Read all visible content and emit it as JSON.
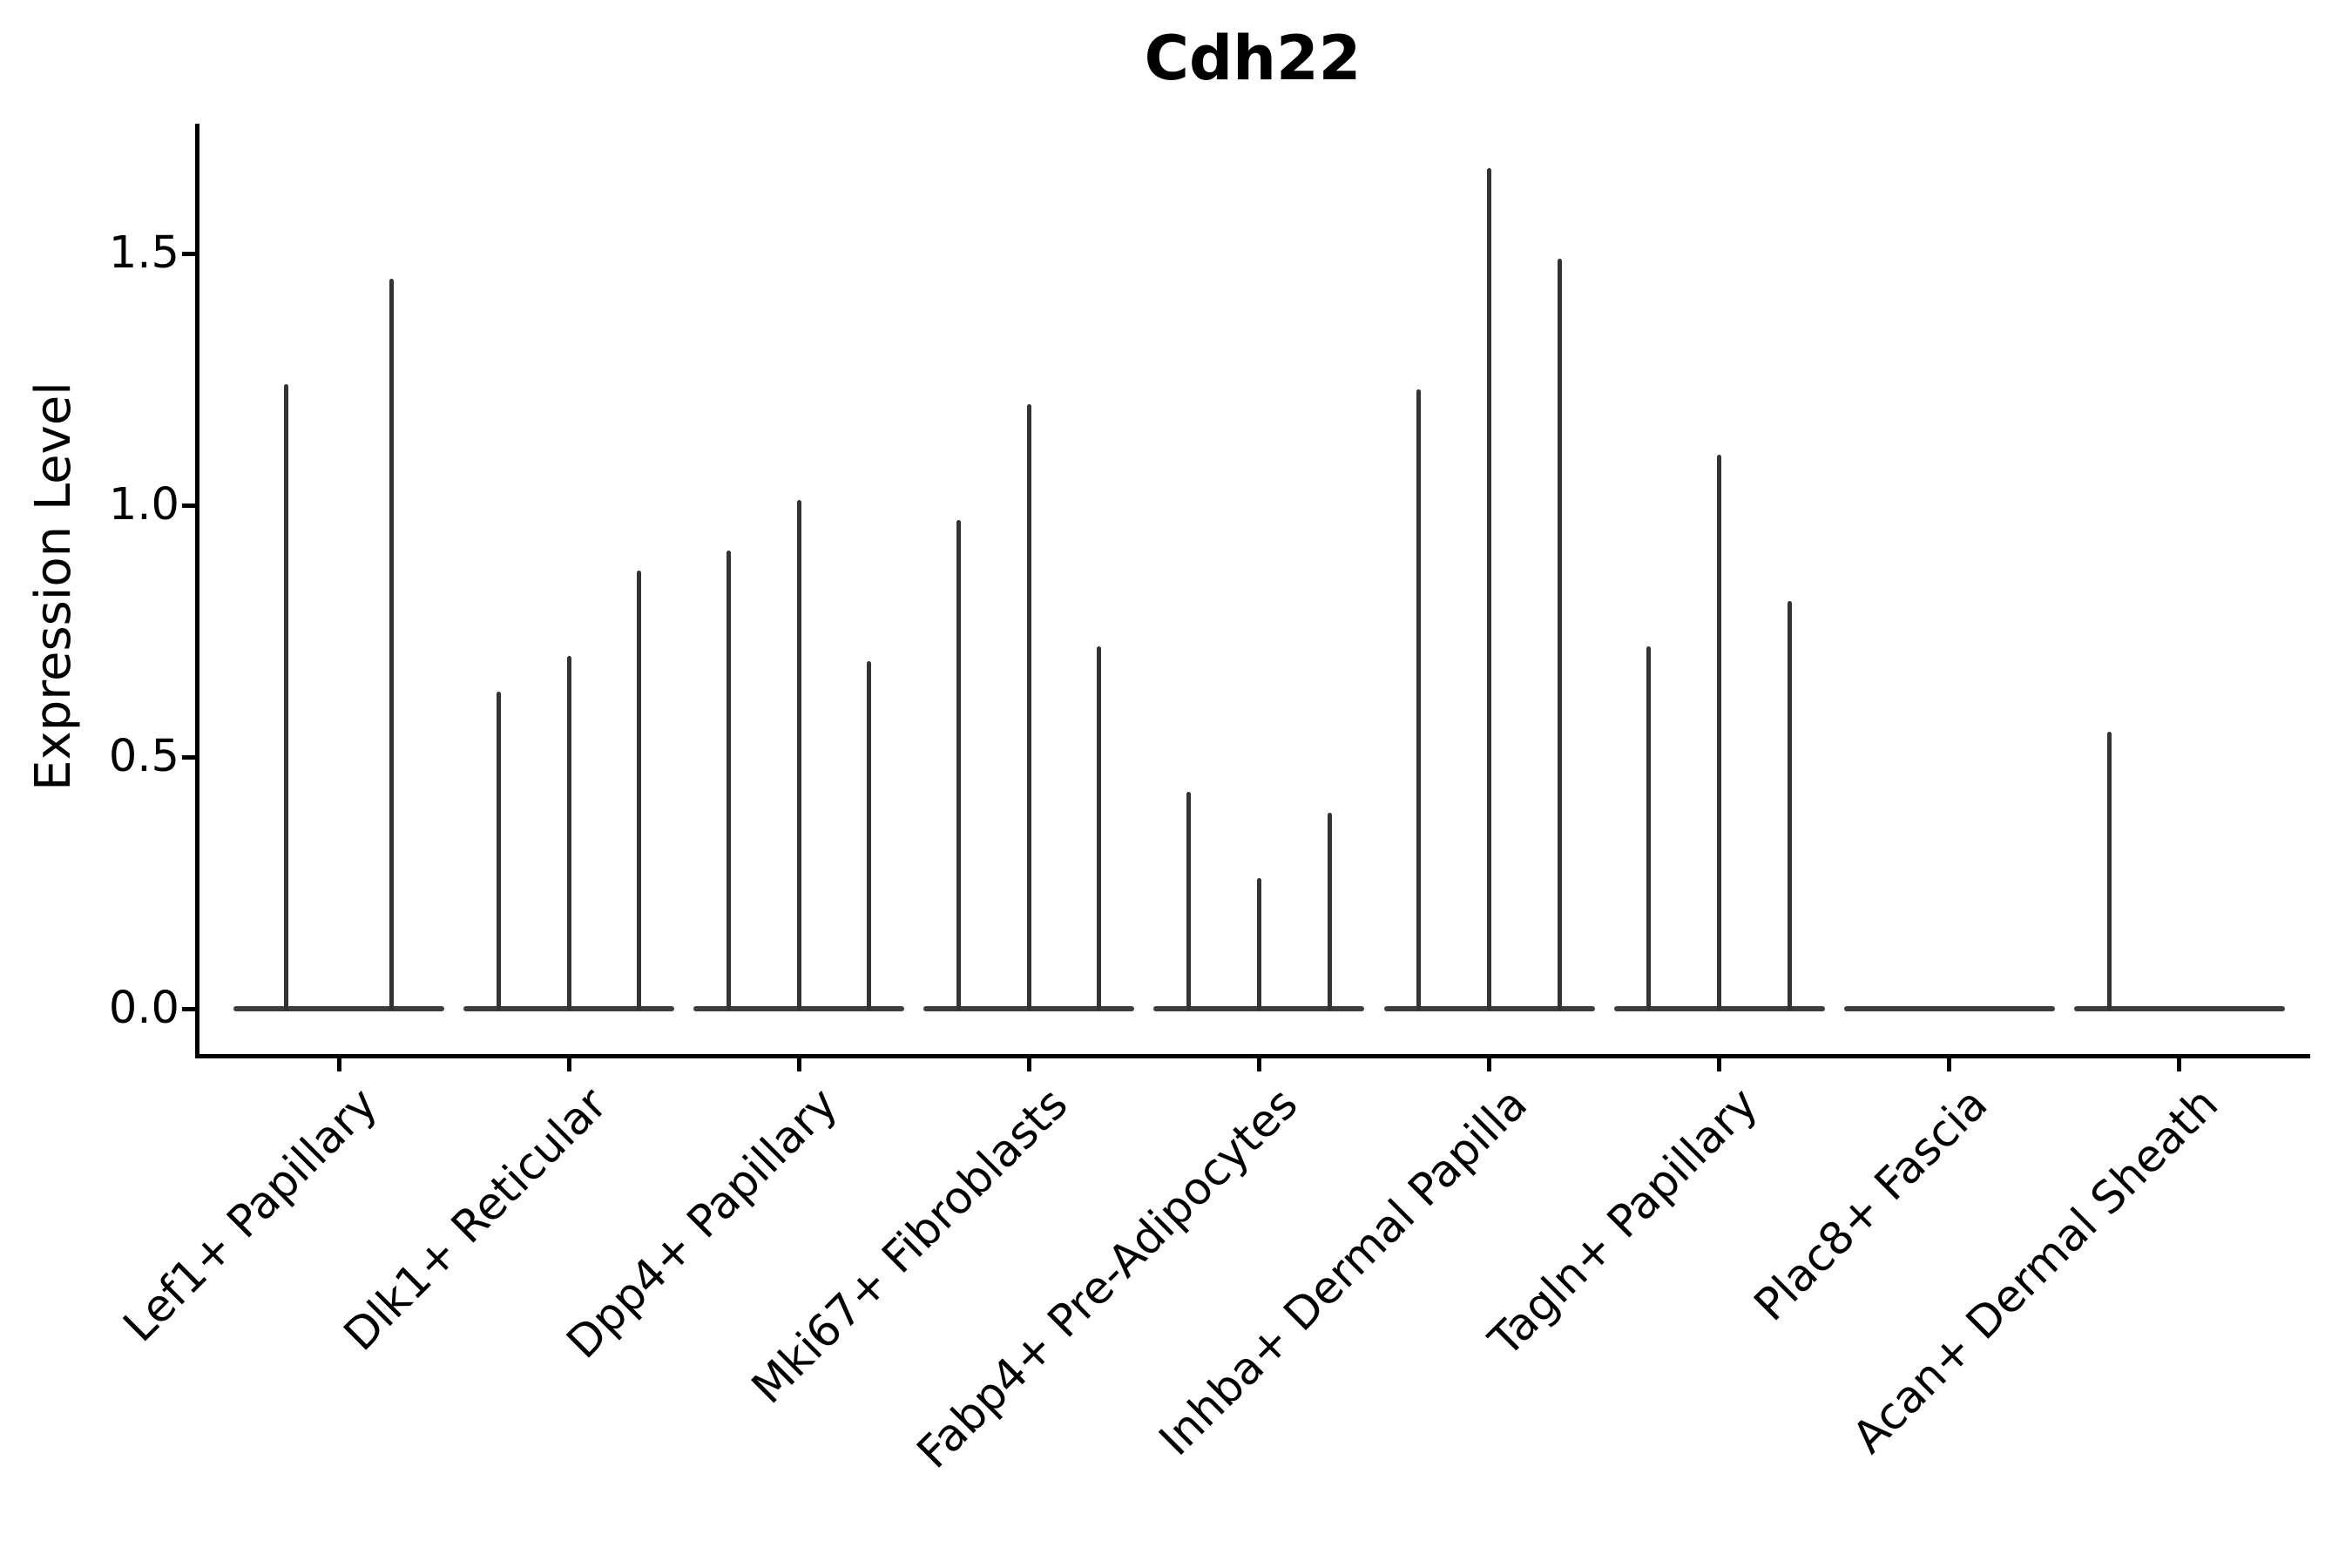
{
  "chart_data": {
    "type": "violin",
    "title": "Cdh22",
    "xlabel": "",
    "ylabel": "Expression Level",
    "ylim": [
      0,
      1.76
    ],
    "ytick_labels": [
      "0.0",
      "0.5",
      "1.0",
      "1.5"
    ],
    "ytick_values": [
      0.0,
      0.5,
      1.0,
      1.5
    ],
    "grid": false,
    "legend_position": "none",
    "categories": [
      "Lef1+ Papillary",
      "Dlk1+ Reticular",
      "Dpp4+ Papillary",
      "Mki67+ Fibroblasts",
      "Fabp4+ Pre-Adipocytes",
      "Inhba+ Dermal Papilla",
      "Tagln+ Papillary",
      "Plac8+ Fascia",
      "Acan+ Dermal Sheath"
    ],
    "groups": [
      {
        "label": "Lef1+ Papillary",
        "violin_peaks": [
          1.24,
          1.45
        ]
      },
      {
        "label": "Dlk1+ Reticular",
        "violin_peaks": [
          0.63,
          0.7,
          0.87
        ]
      },
      {
        "label": "Dpp4+ Papillary",
        "violin_peaks": [
          0.91,
          1.01,
          0.69
        ]
      },
      {
        "label": "Mki67+ Fibroblasts",
        "violin_peaks": [
          0.97,
          1.2,
          0.72
        ]
      },
      {
        "label": "Fabp4+ Pre-Adipocytes",
        "violin_peaks": [
          0.43,
          0.26,
          0.39
        ]
      },
      {
        "label": "Inhba+ Dermal Papilla",
        "violin_peaks": [
          1.23,
          1.67,
          1.49
        ]
      },
      {
        "label": "Tagln+ Papillary",
        "violin_peaks": [
          0.72,
          1.1,
          0.81
        ]
      },
      {
        "label": "Plac8+ Fascia",
        "violin_peaks": [
          0,
          0,
          0
        ]
      },
      {
        "label": "Acan+ Dermal Sheath",
        "violin_peaks": [
          0.55,
          0,
          0
        ]
      }
    ],
    "note": "Single-gene violin plot; expression mass concentrated at 0 with thin density tails reaching each listed peak value"
  },
  "colors": {
    "background": "#ffffff",
    "ink": "#000000",
    "spike": "#333333",
    "violin_body": "#3d3d3d"
  }
}
